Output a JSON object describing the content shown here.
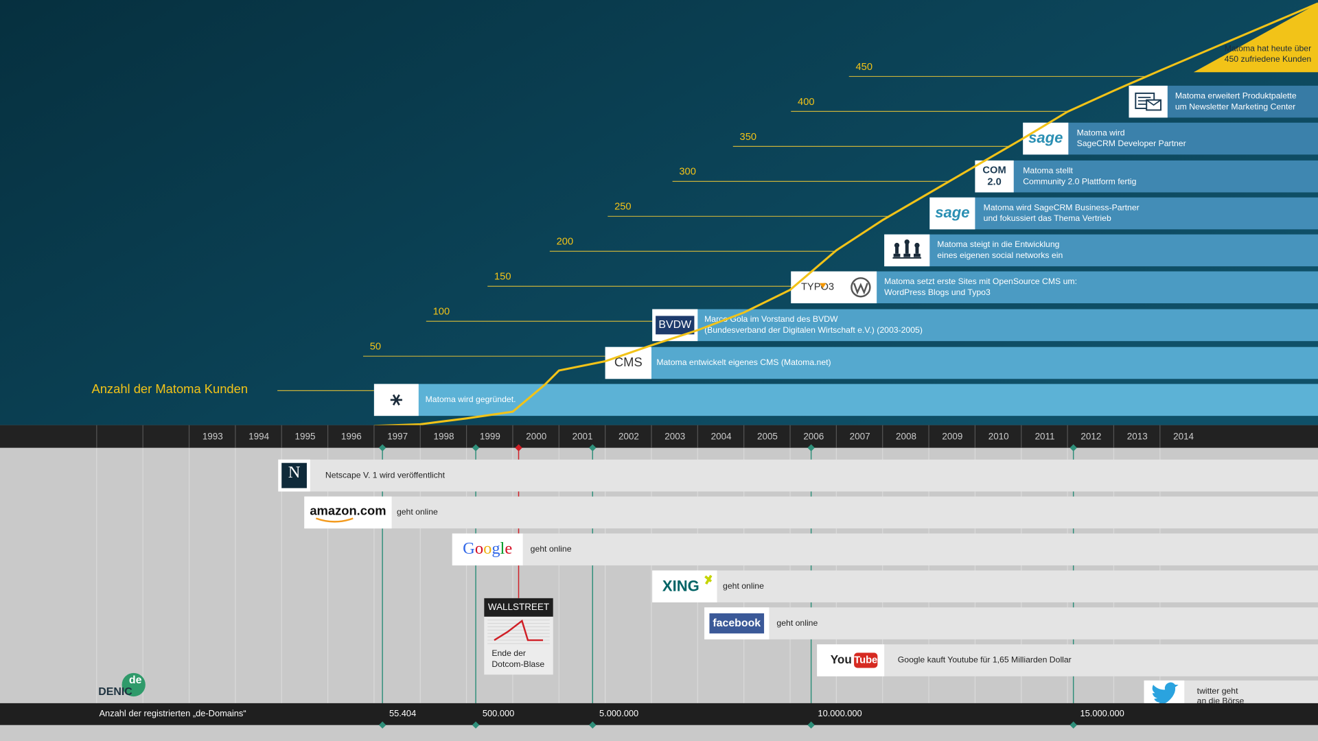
{
  "title": "Anzahl der Matoma Kunden",
  "highlight": [
    "Matoma hat heute über",
    "450 zufriedene Kunden"
  ],
  "customer_scale": [
    50,
    100,
    150,
    200,
    250,
    300,
    350,
    400,
    450
  ],
  "years": [
    1993,
    1994,
    1995,
    1996,
    1997,
    1998,
    1999,
    2000,
    2001,
    2002,
    2003,
    2004,
    2005,
    2006,
    2007,
    2008,
    2009,
    2010,
    2011,
    2012,
    2013,
    2014
  ],
  "matoma_events": [
    {
      "text": [
        "Matoma wird gegründet."
      ]
    },
    {
      "logo": [
        "CMS"
      ],
      "text": [
        "Matoma entwickelt eigenes CMS (Matoma.net)"
      ]
    },
    {
      "logo": [
        "BVDW"
      ],
      "text": [
        "Marco Gola im Vorstand des BVDW",
        "(Bundesverband der Digitalen Wirtschaft e.V.) (2003-2005)"
      ]
    },
    {
      "logo": [
        "TYPO3"
      ],
      "text": [
        "Matoma setzt erste Sites mit OpenSource CMS um:",
        "WordPress Blogs und Typo3"
      ]
    },
    {
      "text": [
        "Matoma steigt in die Entwicklung",
        "eines eigenen social networks ein"
      ]
    },
    {
      "logo": [
        "sage"
      ],
      "text": [
        "Matoma wird SageCRM Business-Partner",
        "und fokussiert das Thema Vertrieb"
      ]
    },
    {
      "logo": [
        "COM",
        "2.0"
      ],
      "text": [
        "Matoma stellt",
        "Community 2.0 Plattform fertig"
      ]
    },
    {
      "logo": [
        "sage"
      ],
      "text": [
        "Matoma wird",
        "SageCRM Developer Partner"
      ]
    },
    {
      "text": [
        "Matoma erweitert Produktpalette",
        "um Newsletter Marketing Center"
      ]
    }
  ],
  "web_events": [
    {
      "logo": [
        "N"
      ],
      "text": [
        "Netscape V. 1 wird veröffentlicht"
      ]
    },
    {
      "logo": [
        "amazon.com"
      ],
      "text": [
        "geht online"
      ]
    },
    {
      "logo": [
        "Google"
      ],
      "text": [
        "geht online"
      ]
    },
    {
      "logo": [
        "XING"
      ],
      "text": [
        "geht online"
      ]
    },
    {
      "logo": [
        "facebook"
      ],
      "text": [
        "geht online"
      ]
    },
    {
      "logo": [
        "You",
        "Tube"
      ],
      "text": [
        "Google kauft Youtube für 1,65 Milliarden Dollar"
      ]
    },
    {
      "text": [
        "twitter geht",
        "an die Börse"
      ]
    }
  ],
  "wallstreet": {
    "title": "WALLSTREET",
    "text": [
      "Ende der",
      "Dotcom-Blase"
    ]
  },
  "denic": {
    "name": "DENIC",
    "tld": "de"
  },
  "domains": {
    "label": "Anzahl der registrierten „de-Domains“",
    "milestones": [
      "55.404",
      "500.000",
      "5.000.000",
      "10.000.000",
      "15.000.000"
    ]
  }
}
